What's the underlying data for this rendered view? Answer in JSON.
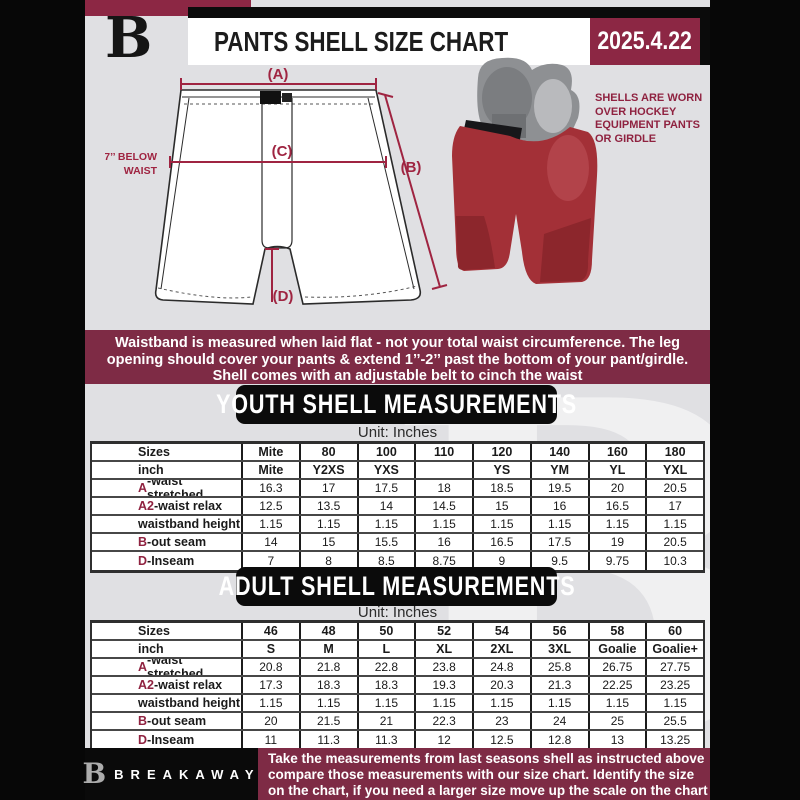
{
  "colors": {
    "maroon_banner": "#7E2B45",
    "maroon_accent": "#8C2744",
    "diagram_red": "#9F2441",
    "prefix_red": "#8F2240",
    "page_gray": "#E0E0E3",
    "black": "#0B0B0B"
  },
  "header": {
    "logo_letter": "B",
    "title": "PANTS SHELL SIZE CHART",
    "date": "2025.4.22"
  },
  "diagram": {
    "label_a": "(A)",
    "label_b": "(B)",
    "label_c": "(C)",
    "label_d": "(D)",
    "waist_note_line1": "7’’ BELOW",
    "waist_note_line2": "WAIST",
    "photo_note": "SHELLS ARE WORN OVER HOCKEY EQUIPMENT PANTS OR GIRDLE"
  },
  "notice": {
    "line1": "Waistband is measured when laid flat - not your total waist circumference. The leg",
    "line2": "opening should cover your pants & extend 1’’-2’’ past the bottom of your pant/girdle.",
    "line3": "Shell comes with an adjustable belt to cinch the waist"
  },
  "youth": {
    "heading": "YOUTH SHELL MEASUREMENTS",
    "unit": "Unit: Inches",
    "rows": [
      {
        "prefix": "",
        "label": "Sizes",
        "header": true,
        "values": [
          "Mite",
          "80",
          "100",
          "110",
          "120",
          "140",
          "160",
          "180"
        ]
      },
      {
        "prefix": "",
        "label": "inch",
        "header": true,
        "values": [
          "Mite",
          "Y2XS",
          "YXS",
          "",
          "YS",
          "YM",
          "YL",
          "YXL"
        ]
      },
      {
        "prefix": "A",
        "label": "-waist stretched",
        "header": false,
        "values": [
          "16.3",
          "17",
          "17.5",
          "18",
          "18.5",
          "19.5",
          "20",
          "20.5"
        ]
      },
      {
        "prefix": "A2",
        "label": "-waist relax",
        "header": false,
        "values": [
          "12.5",
          "13.5",
          "14",
          "14.5",
          "15",
          "16",
          "16.5",
          "17"
        ]
      },
      {
        "prefix": "",
        "label": "waistband height",
        "header": false,
        "values": [
          "1.15",
          "1.15",
          "1.15",
          "1.15",
          "1.15",
          "1.15",
          "1.15",
          "1.15"
        ]
      },
      {
        "prefix": "B",
        "label": "-out seam",
        "header": false,
        "values": [
          "14",
          "15",
          "15.5",
          "16",
          "16.5",
          "17.5",
          "19",
          "20.5"
        ]
      },
      {
        "prefix": "D",
        "label": "-Inseam",
        "header": false,
        "values": [
          "7",
          "8",
          "8.5",
          "8.75",
          "9",
          "9.5",
          "9.75",
          "10.3"
        ]
      }
    ]
  },
  "adult": {
    "heading": "ADULT SHELL MEASUREMENTS",
    "unit": "Unit: Inches",
    "rows": [
      {
        "prefix": "",
        "label": "Sizes",
        "header": true,
        "values": [
          "46",
          "48",
          "50",
          "52",
          "54",
          "56",
          "58",
          "60"
        ]
      },
      {
        "prefix": "",
        "label": "inch",
        "header": true,
        "values": [
          "S",
          "M",
          "L",
          "XL",
          "2XL",
          "3XL",
          "Goalie",
          "Goalie+"
        ]
      },
      {
        "prefix": "A",
        "label": "-waist stretched",
        "header": false,
        "values": [
          "20.8",
          "21.8",
          "22.8",
          "23.8",
          "24.8",
          "25.8",
          "26.75",
          "27.75"
        ]
      },
      {
        "prefix": "A2",
        "label": "-waist relax",
        "header": false,
        "values": [
          "17.3",
          "18.3",
          "18.3",
          "19.3",
          "20.3",
          "21.3",
          "22.25",
          "23.25"
        ]
      },
      {
        "prefix": "",
        "label": "waistband height",
        "header": false,
        "values": [
          "1.15",
          "1.15",
          "1.15",
          "1.15",
          "1.15",
          "1.15",
          "1.15",
          "1.15"
        ]
      },
      {
        "prefix": "B",
        "label": "-out seam",
        "header": false,
        "values": [
          "20",
          "21.5",
          "21",
          "22.3",
          "23",
          "24",
          "25",
          "25.5"
        ]
      },
      {
        "prefix": "D",
        "label": "-Inseam",
        "header": false,
        "values": [
          "11",
          "11.3",
          "11.3",
          "12",
          "12.5",
          "12.8",
          "13",
          "13.25"
        ]
      }
    ]
  },
  "watermark_letter": "B",
  "footer": {
    "logo_letter": "B",
    "brand": "BREAKAWAY",
    "line1": "Take the measurements from last seasons shell as instructed above",
    "line2": "compare those measurements  with our size chart. Identify the size",
    "line3": "on the chart, if you need a larger size move up the scale on the chart"
  }
}
